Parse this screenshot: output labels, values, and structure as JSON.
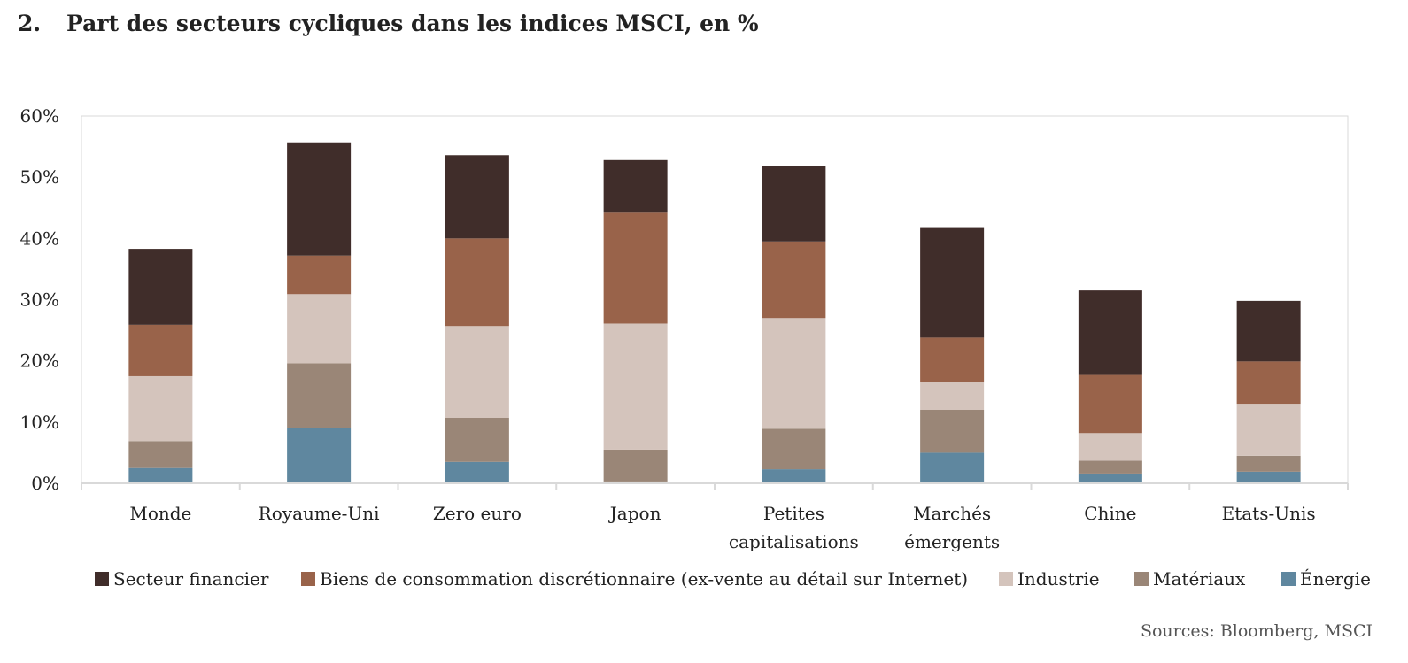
{
  "figure": {
    "number": "2.",
    "title": "Part des secteurs cycliques dans les indices MSCI, en %",
    "source": "Sources: Bloomberg, MSCI"
  },
  "chart_data": {
    "type": "bar",
    "stacked": true,
    "categories": [
      [
        "Monde"
      ],
      [
        "Royaume-Uni"
      ],
      [
        "Zero euro"
      ],
      [
        "Japon"
      ],
      [
        "Petites",
        "capitalisations"
      ],
      [
        "Marchés",
        "émergents"
      ],
      [
        "Chine"
      ],
      [
        "Etats-Unis"
      ]
    ],
    "ylim": [
      0,
      60
    ],
    "yticks": [
      "0%",
      "10%",
      "20%",
      "30%",
      "40%",
      "50%",
      "60%"
    ],
    "ytick_values": [
      0,
      10,
      20,
      30,
      40,
      50,
      60
    ],
    "grid": false,
    "legend_position": "bottom",
    "series": [
      {
        "name": "Énergie",
        "color": "#5f879f",
        "values": [
          2.5,
          9.0,
          3.5,
          0.3,
          2.3,
          5.0,
          1.6,
          1.9
        ]
      },
      {
        "name": "Matériaux",
        "color": "#9a8677",
        "values": [
          4.4,
          10.6,
          7.2,
          5.2,
          6.6,
          7.0,
          2.1,
          2.6
        ]
      },
      {
        "name": "Industrie",
        "color": "#d4c4bc",
        "values": [
          10.6,
          11.3,
          15.0,
          20.6,
          18.1,
          4.6,
          4.5,
          8.5
        ]
      },
      {
        "name": "Biens de consommation discrétionnaire (ex-vente au détail sur Internet)",
        "color": "#99634a",
        "values": [
          8.4,
          6.3,
          14.3,
          18.1,
          12.5,
          7.2,
          9.5,
          6.9
        ]
      },
      {
        "name": "Secteur financier",
        "color": "#402d2a",
        "values": [
          12.4,
          18.5,
          13.6,
          8.6,
          12.4,
          17.9,
          13.8,
          9.9
        ]
      }
    ],
    "legend_order": [
      4,
      3,
      2,
      1,
      0
    ]
  }
}
